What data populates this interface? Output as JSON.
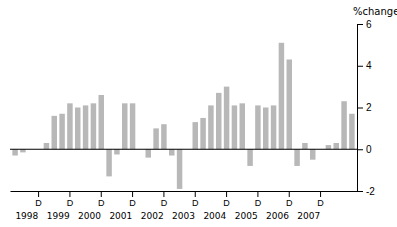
{
  "chart_data": {
    "type": "bar",
    "ylabel": "%change",
    "categories": [
      null,
      null,
      null,
      "D",
      null,
      null,
      null,
      "D",
      null,
      null,
      null,
      "D",
      null,
      null,
      null,
      "D",
      null,
      null,
      null,
      "D",
      null,
      null,
      null,
      "D",
      null,
      null,
      null,
      "D",
      null,
      null,
      null,
      "D",
      null,
      null,
      null,
      "D",
      null,
      null,
      null,
      "D",
      null,
      null,
      null,
      null
    ],
    "values": [
      -0.3,
      -0.15,
      0.0,
      0.0,
      0.3,
      1.6,
      1.7,
      2.2,
      2.0,
      2.1,
      2.2,
      2.6,
      -1.3,
      -0.25,
      2.2,
      2.2,
      0.0,
      -0.4,
      1.0,
      1.2,
      -0.3,
      -1.9,
      0.0,
      1.3,
      1.5,
      2.1,
      2.7,
      3.0,
      2.1,
      2.2,
      -0.8,
      2.1,
      2.0,
      2.1,
      5.1,
      4.3,
      -0.8,
      0.3,
      -0.5,
      0.0,
      0.2,
      0.3,
      2.3,
      1.7
    ],
    "color": "#b8b8b8",
    "ylim": [
      -2,
      6
    ],
    "yticks": [
      -2,
      0,
      2,
      4,
      6
    ],
    "grid": false,
    "annotations": [
      {
        "text": "1998",
        "x": 1.5
      },
      {
        "text": "1999",
        "x": 5.5
      },
      {
        "text": "2000",
        "x": 9.5
      },
      {
        "text": "2001",
        "x": 13.5
      },
      {
        "text": "2002",
        "x": 17.5
      },
      {
        "text": "2003",
        "x": 21.5
      },
      {
        "text": "2004",
        "x": 25.5
      },
      {
        "text": "2005",
        "x": 29.5
      },
      {
        "text": "2006",
        "x": 33.5
      },
      {
        "text": "2007",
        "x": 37.5
      }
    ]
  }
}
